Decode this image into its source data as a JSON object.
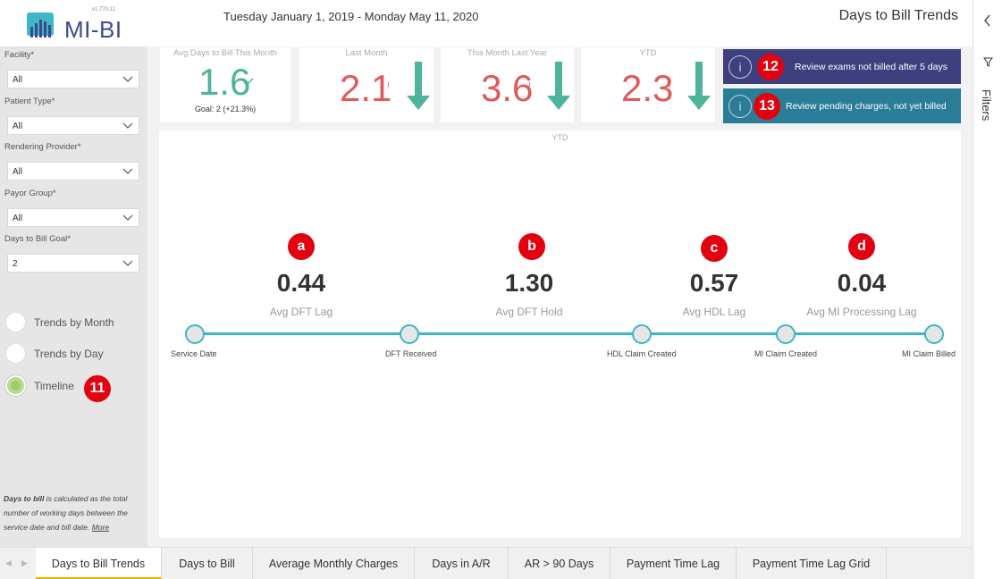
{
  "app": {
    "logo_text": "MI-BI",
    "version": "v1.770.11",
    "date_range": "Tuesday January 1, 2019 - Monday May 11, 2020",
    "page_title": "Days to Bill Trends"
  },
  "sidebar": {
    "filters": [
      {
        "label": "Facility*",
        "value": "All"
      },
      {
        "label": "Patient Type*",
        "value": "All"
      },
      {
        "label": "Rendering Provider*",
        "value": "All"
      },
      {
        "label": "Payor Group*",
        "value": "All"
      },
      {
        "label": "Days to Bill Goal*",
        "value": "2"
      }
    ],
    "views": [
      {
        "label": "Trends by Month",
        "selected": false
      },
      {
        "label": "Trends by Day",
        "selected": false
      },
      {
        "label": "Timeline",
        "selected": true
      }
    ],
    "timeline_badge": "11",
    "note_bold": "Days to bill",
    "note_text": " is calculated as the total number of working days between the service date and bill date. ",
    "note_link": "More"
  },
  "kpis": {
    "this_month": {
      "title": "Avg Days to Bill This Month",
      "value": "1.6",
      "goal": "Goal: 2 (+21.3%)"
    },
    "last_month": {
      "title": "Last Month",
      "value": "2.1"
    },
    "last_year": {
      "title": "This Month Last Year",
      "value": "3.6"
    },
    "ytd": {
      "title": "YTD",
      "value": "2.3"
    }
  },
  "actions": [
    {
      "badge": "12",
      "label": "Review exams not billed after 5 days",
      "color": "#3e3f7f"
    },
    {
      "badge": "13",
      "label": "Review pending charges, not yet billed",
      "color": "#2a7d97"
    }
  ],
  "timeline": {
    "header": "YTD",
    "segments": [
      {
        "badge": "a",
        "value": "0.44",
        "label": "Avg DFT Lag"
      },
      {
        "badge": "b",
        "value": "1.30",
        "label": "Avg DFT Hold"
      },
      {
        "badge": "c",
        "value": "0.57",
        "label": "Avg HDL Lag"
      },
      {
        "badge": "d",
        "value": "0.04",
        "label": "Avg MI Processing Lag"
      }
    ],
    "milestones": [
      "Service Date",
      "DFT Received",
      "HDL Claim Created",
      "MI Claim Created",
      "MI Claim Billed"
    ]
  },
  "filters_pane": {
    "label": "Filters"
  },
  "tabs": [
    {
      "label": "Days to Bill Trends",
      "active": true
    },
    {
      "label": "Days to Bill",
      "active": false
    },
    {
      "label": "Average Monthly Charges",
      "active": false
    },
    {
      "label": "Days in A/R",
      "active": false
    },
    {
      "label": "AR > 90 Days",
      "active": false
    },
    {
      "label": "Payment Time Lag",
      "active": false
    },
    {
      "label": "Payment Time Lag Grid",
      "active": false
    }
  ],
  "colors": {
    "accent_teal": "#3db8c6",
    "good": "#4db39a",
    "bad": "#e05a5a",
    "badge_red": "#e3000f"
  }
}
